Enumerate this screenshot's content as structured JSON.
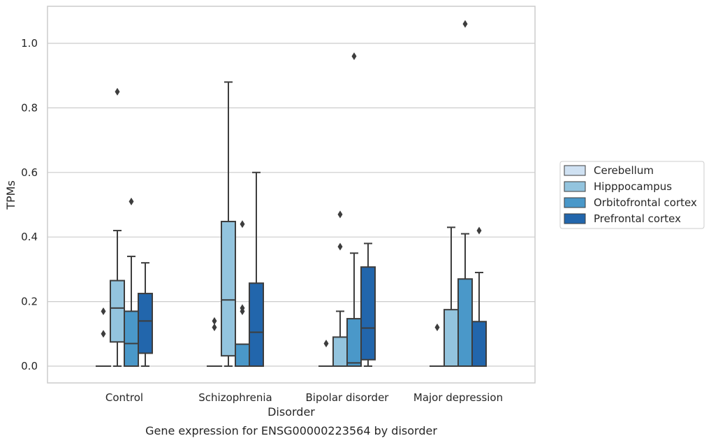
{
  "chart_data": {
    "type": "box",
    "title": "Gene expression for ENSG00000223564 by disorder",
    "xlabel": "Disorder",
    "ylabel": "TPMs",
    "ylim": [
      -0.05,
      1.12
    ],
    "y_ticks": [
      "0.0",
      "0.2",
      "0.4",
      "0.6",
      "0.8",
      "1.0"
    ],
    "grid": "horizontal",
    "legend_position": "right",
    "categories": [
      "Control",
      "Schizophrenia",
      "Bipolar disorder",
      "Major depression"
    ],
    "series": [
      {
        "name": "Cerebellum",
        "color": "#cfe1f2",
        "boxes": [
          {
            "whisker_low": 0.0,
            "q1": 0.0,
            "median": 0.0,
            "q3": 0.0,
            "whisker_high": 0.0,
            "outliers": [
              0.1,
              0.17
            ]
          },
          {
            "whisker_low": 0.0,
            "q1": 0.0,
            "median": 0.0,
            "q3": 0.0,
            "whisker_high": 0.0,
            "outliers": [
              0.12,
              0.14
            ]
          },
          {
            "whisker_low": 0.0,
            "q1": 0.0,
            "median": 0.0,
            "q3": 0.0,
            "whisker_high": 0.0,
            "outliers": [
              0.07
            ]
          },
          {
            "whisker_low": 0.0,
            "q1": 0.0,
            "median": 0.0,
            "q3": 0.0,
            "whisker_high": 0.0,
            "outliers": [
              0.12
            ]
          }
        ]
      },
      {
        "name": "Hipppocampus",
        "color": "#93c4de",
        "boxes": [
          {
            "whisker_low": 0.0,
            "q1": 0.075,
            "median": 0.18,
            "q3": 0.265,
            "whisker_high": 0.42,
            "outliers": [
              0.85
            ]
          },
          {
            "whisker_low": 0.0,
            "q1": 0.032,
            "median": 0.205,
            "q3": 0.448,
            "whisker_high": 0.88,
            "outliers": []
          },
          {
            "whisker_low": 0.0,
            "q1": 0.0,
            "median": 0.0,
            "q3": 0.09,
            "whisker_high": 0.17,
            "outliers": [
              0.37,
              0.47
            ]
          },
          {
            "whisker_low": 0.0,
            "q1": 0.0,
            "median": 0.0,
            "q3": 0.175,
            "whisker_high": 0.43,
            "outliers": []
          }
        ]
      },
      {
        "name": "Orbitofrontal cortex",
        "color": "#4a98c9",
        "boxes": [
          {
            "whisker_low": 0.0,
            "q1": 0.0,
            "median": 0.07,
            "q3": 0.17,
            "whisker_high": 0.34,
            "outliers": [
              0.51
            ]
          },
          {
            "whisker_low": 0.0,
            "q1": 0.0,
            "median": 0.0,
            "q3": 0.068,
            "whisker_high": 0.068,
            "outliers": [
              0.17,
              0.18,
              0.44
            ]
          },
          {
            "whisker_low": 0.0,
            "q1": 0.0,
            "median": 0.01,
            "q3": 0.147,
            "whisker_high": 0.35,
            "outliers": [
              0.96
            ]
          },
          {
            "whisker_low": 0.0,
            "q1": 0.0,
            "median": 0.0,
            "q3": 0.27,
            "whisker_high": 0.41,
            "outliers": [
              1.06
            ]
          }
        ]
      },
      {
        "name": "Prefrontal cortex",
        "color": "#2266ac",
        "boxes": [
          {
            "whisker_low": 0.0,
            "q1": 0.04,
            "median": 0.14,
            "q3": 0.225,
            "whisker_high": 0.32,
            "outliers": []
          },
          {
            "whisker_low": 0.0,
            "q1": 0.0,
            "median": 0.105,
            "q3": 0.257,
            "whisker_high": 0.6,
            "outliers": []
          },
          {
            "whisker_low": 0.0,
            "q1": 0.02,
            "median": 0.118,
            "q3": 0.307,
            "whisker_high": 0.38,
            "outliers": []
          },
          {
            "whisker_low": 0.0,
            "q1": 0.0,
            "median": 0.0,
            "q3": 0.138,
            "whisker_high": 0.29,
            "outliers": [
              0.42
            ]
          }
        ]
      }
    ]
  }
}
